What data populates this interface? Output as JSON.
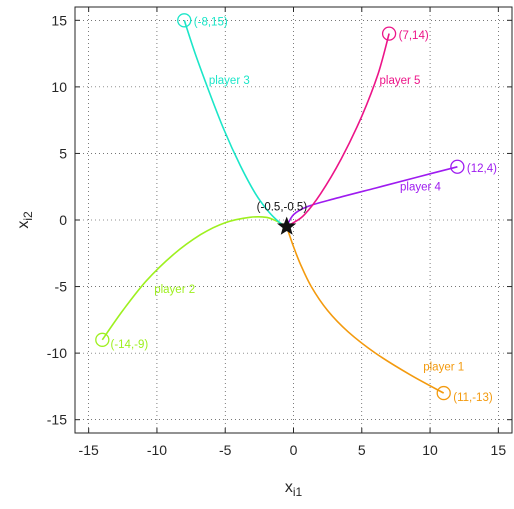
{
  "chart_data": {
    "type": "line",
    "title": "",
    "xlabel": "x",
    "xlabel_sub": "i1",
    "ylabel": "x",
    "ylabel_sub": "i2",
    "xlim": [
      -16,
      16
    ],
    "ylim": [
      -16,
      16
    ],
    "xticks": [
      -15,
      -10,
      -5,
      0,
      5,
      10,
      15
    ],
    "yticks": [
      -15,
      -10,
      -5,
      0,
      5,
      10,
      15
    ],
    "grid": true,
    "grid_style": "dotted",
    "target": {
      "x": -0.5,
      "y": -0.5,
      "marker": "star",
      "label": "(-0.5,-0.5)"
    },
    "series": [
      {
        "name": "player 1",
        "color": "#f39a0e",
        "start_label": "(11,-13)",
        "label_at": [
          9.5,
          -11.3
        ],
        "start_label_at": [
          11.7,
          -13.6
        ],
        "points": [
          [
            11,
            -13
          ],
          [
            8.5,
            -11.6
          ],
          [
            6,
            -10
          ],
          [
            4,
            -8.4
          ],
          [
            2.5,
            -6.8
          ],
          [
            1.3,
            -5.0
          ],
          [
            0.5,
            -3.3
          ],
          [
            0,
            -2.0
          ],
          [
            -0.5,
            -0.5
          ]
        ]
      },
      {
        "name": "player 2",
        "color": "#9ef01f",
        "start_label": "(-14,-9)",
        "label_at": [
          -10.2,
          -5.5
        ],
        "start_label_at": [
          -13.4,
          -9.6
        ],
        "points": [
          [
            -14,
            -9
          ],
          [
            -12.5,
            -6.8
          ],
          [
            -10.8,
            -4.6
          ],
          [
            -8.8,
            -2.6
          ],
          [
            -6.8,
            -1.1
          ],
          [
            -5,
            -0.2
          ],
          [
            -3.2,
            0.2
          ],
          [
            -2,
            0.2
          ],
          [
            -1.2,
            -0.1
          ],
          [
            -0.5,
            -0.5
          ]
        ]
      },
      {
        "name": "player 3",
        "color": "#1be6c8",
        "start_label": "(-8,15)",
        "label_at": [
          -6.2,
          10.2
        ],
        "start_label_at": [
          -7.3,
          14.6
        ],
        "points": [
          [
            -8,
            15
          ],
          [
            -7.2,
            12.5
          ],
          [
            -6.2,
            9.7
          ],
          [
            -5.1,
            6.8
          ],
          [
            -3.9,
            4.1
          ],
          [
            -2.8,
            2.0
          ],
          [
            -1.8,
            0.6
          ],
          [
            -1,
            -0.2
          ],
          [
            -0.5,
            -0.5
          ]
        ]
      },
      {
        "name": "player 4",
        "color": "#9e1bf0",
        "start_label": "(12,4)",
        "label_at": [
          7.8,
          2.2
        ],
        "start_label_at": [
          12.7,
          3.6
        ],
        "points": [
          [
            12,
            4
          ],
          [
            9,
            3.2
          ],
          [
            6,
            2.4
          ],
          [
            3,
            1.6
          ],
          [
            1,
            1.0
          ],
          [
            0,
            0.4
          ],
          [
            -0.5,
            -0.5
          ]
        ]
      },
      {
        "name": "player 5",
        "color": "#ec1488",
        "start_label": "(7,14)",
        "label_at": [
          6.3,
          10.2
        ],
        "start_label_at": [
          7.7,
          13.6
        ],
        "points": [
          [
            7,
            14
          ],
          [
            6.2,
            11
          ],
          [
            5,
            7.8
          ],
          [
            3.5,
            4.6
          ],
          [
            2,
            2.0
          ],
          [
            0.8,
            0.4
          ],
          [
            0,
            -0.2
          ],
          [
            -0.5,
            -0.5
          ]
        ]
      }
    ]
  }
}
